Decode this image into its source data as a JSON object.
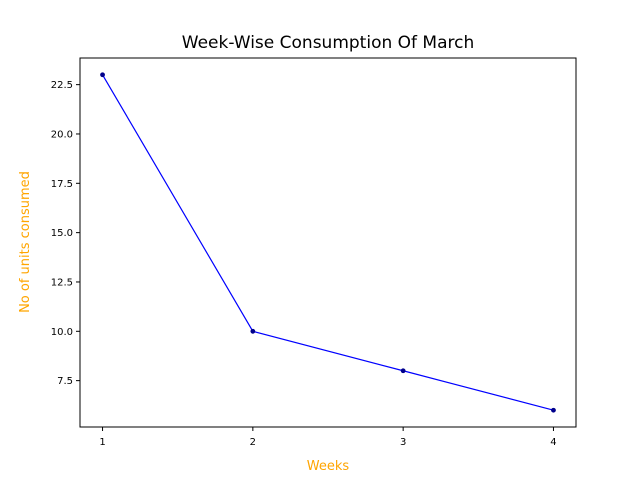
{
  "chart_data": {
    "type": "line",
    "title": "Week-Wise Consumption Of March",
    "xlabel": "Weeks",
    "ylabel": "No of units consumed",
    "x": [
      1,
      2,
      3,
      4
    ],
    "x_tick_labels": [
      "1",
      "2",
      "3",
      "4"
    ],
    "y_ticks": [
      7.5,
      10.0,
      12.5,
      15.0,
      17.5,
      20.0,
      22.5
    ],
    "y_tick_labels": [
      "7.5",
      "10.0",
      "12.5",
      "15.0",
      "17.5",
      "20.0",
      "22.5"
    ],
    "xlim": [
      0.85,
      4.15
    ],
    "ylim": [
      5.15,
      23.85
    ],
    "series": [
      {
        "values": [
          23,
          10,
          8,
          6
        ],
        "color": "#0000ff",
        "marker_color": "#00008b"
      }
    ],
    "grid": false,
    "colors": {
      "axis_label": "#ffa500",
      "title": "#000000"
    }
  }
}
